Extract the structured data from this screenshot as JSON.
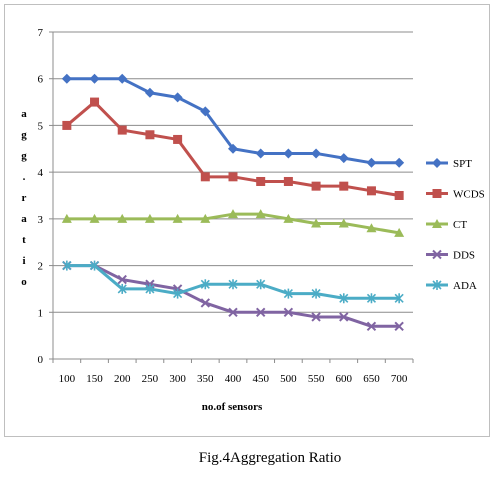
{
  "chart_data": {
    "type": "line",
    "x": [
      100,
      150,
      200,
      250,
      300,
      350,
      400,
      450,
      500,
      550,
      600,
      650,
      700
    ],
    "xlabel": "no.of sensors",
    "ylabel": "a g g . r a t i o",
    "ylabel_chars": [
      "a",
      "g",
      "g",
      ".",
      "r",
      "a",
      "t",
      "i",
      "o"
    ],
    "ylim": [
      0,
      7
    ],
    "yticks": [
      0,
      1,
      2,
      3,
      4,
      5,
      6,
      7
    ],
    "grid": true,
    "legend_position": "right",
    "series": [
      {
        "name": "SPT",
        "color": "#4472c4",
        "marker": "diamond",
        "values": [
          6,
          6,
          6,
          5.7,
          5.6,
          5.3,
          4.5,
          4.4,
          4.4,
          4.4,
          4.3,
          4.2,
          4.2
        ]
      },
      {
        "name": "WCDS",
        "color": "#c0504d",
        "marker": "square",
        "values": [
          5,
          5.5,
          4.9,
          4.8,
          4.7,
          3.9,
          3.9,
          3.8,
          3.8,
          3.7,
          3.7,
          3.6,
          3.5
        ]
      },
      {
        "name": "CT",
        "color": "#9bbb59",
        "marker": "triangle",
        "values": [
          3,
          3,
          3,
          3,
          3,
          3,
          3.1,
          3.1,
          3,
          2.9,
          2.9,
          2.8,
          2.7
        ]
      },
      {
        "name": "DDS",
        "color": "#8064a2",
        "marker": "x",
        "values": [
          2,
          2,
          1.7,
          1.6,
          1.5,
          1.2,
          1,
          1,
          1,
          0.9,
          0.9,
          0.7,
          0.7
        ]
      },
      {
        "name": "ADA",
        "color": "#4bacc6",
        "marker": "star",
        "values": [
          2,
          2,
          1.5,
          1.5,
          1.4,
          1.6,
          1.6,
          1.6,
          1.4,
          1.4,
          1.3,
          1.3,
          1.3
        ]
      }
    ]
  },
  "caption": "Fig.4Aggregation Ratio"
}
